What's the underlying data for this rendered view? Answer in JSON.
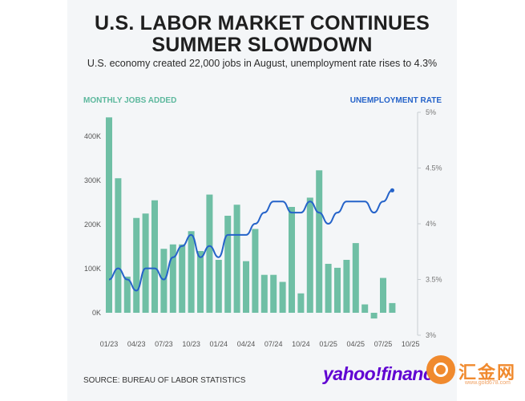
{
  "header": {
    "title_line1": "U.S. LABOR MARKET CONTINUES",
    "title_line2": "SUMMER SLOWDOWN",
    "subtitle": "U.S. economy created 22,000 jobs in August, unemployment rate rises to 4.3%"
  },
  "footer": {
    "source": "SOURCE: BUREAU OF LABOR STATISTICS",
    "logo_text": "yahoo!finance"
  },
  "watermark": {
    "text": "汇金网",
    "sub": "www.gold678.com"
  },
  "colors": {
    "bar": "#6fbfa5",
    "line": "#2563c9",
    "left_label": "#5cb89d",
    "right_label": "#2563c9",
    "background": "#f4f6f8"
  },
  "chart_data": {
    "type": "bar",
    "left_axis_label": "MONTHLY JOBS ADDED",
    "right_axis_label": "UNEMPLOYMENT RATE",
    "months": [
      "Jan 2023",
      "Feb 2023",
      "Mar 2023",
      "Apr 2023",
      "May 2023",
      "Jun 2023",
      "Jul 2023",
      "Aug 2023",
      "Sep 2023",
      "Oct 2023",
      "Nov 2023",
      "Dec 2023",
      "Jan 2024",
      "Feb 2024",
      "Mar 2024",
      "Apr 2024",
      "May 2024",
      "Jun 2024",
      "Jul 2024",
      "Aug 2024",
      "Sep 2024",
      "Oct 2024",
      "Nov 2024",
      "Dec 2024",
      "Jan 2025",
      "Feb 2025",
      "Mar 2025",
      "Apr 2025",
      "May 2025",
      "Jun 2025",
      "Jul 2025",
      "Aug 2025"
    ],
    "x_tick_labels": [
      "01/23",
      "04/23",
      "07/23",
      "10/23",
      "01/24",
      "04/24",
      "07/24",
      "10/24",
      "01/25",
      "04/25",
      "07/25",
      "10/25"
    ],
    "series": [
      {
        "name": "MONTHLY JOBS ADDED",
        "axis": "left",
        "type": "bar",
        "values": [
          443000,
          305000,
          82000,
          215000,
          225000,
          255000,
          145000,
          155000,
          155000,
          185000,
          140000,
          268000,
          120000,
          220000,
          245000,
          117000,
          190000,
          86000,
          86000,
          70000,
          240000,
          44000,
          261000,
          323000,
          111000,
          102000,
          120000,
          158000,
          19000,
          -13000,
          79000,
          22000
        ]
      },
      {
        "name": "UNEMPLOYMENT RATE",
        "axis": "right",
        "type": "line",
        "values": [
          3.5,
          3.6,
          3.5,
          3.4,
          3.6,
          3.6,
          3.5,
          3.7,
          3.8,
          3.9,
          3.7,
          3.8,
          3.7,
          3.9,
          3.9,
          3.9,
          4.0,
          4.1,
          4.2,
          4.2,
          4.1,
          4.1,
          4.2,
          4.1,
          4.0,
          4.1,
          4.2,
          4.2,
          4.2,
          4.1,
          4.2,
          4.3
        ]
      }
    ],
    "left_axis": {
      "ticks": [
        "0K",
        "100K",
        "200K",
        "300K",
        "400K"
      ],
      "tick_values": [
        0,
        100000,
        200000,
        300000,
        400000
      ],
      "range": [
        -50000,
        450000
      ]
    },
    "right_axis": {
      "ticks": [
        "3%",
        "3.5%",
        "4%",
        "4.5%",
        "5%"
      ],
      "tick_values": [
        3,
        3.5,
        4,
        4.5,
        5
      ],
      "range": [
        3,
        5
      ]
    },
    "grid": false
  }
}
